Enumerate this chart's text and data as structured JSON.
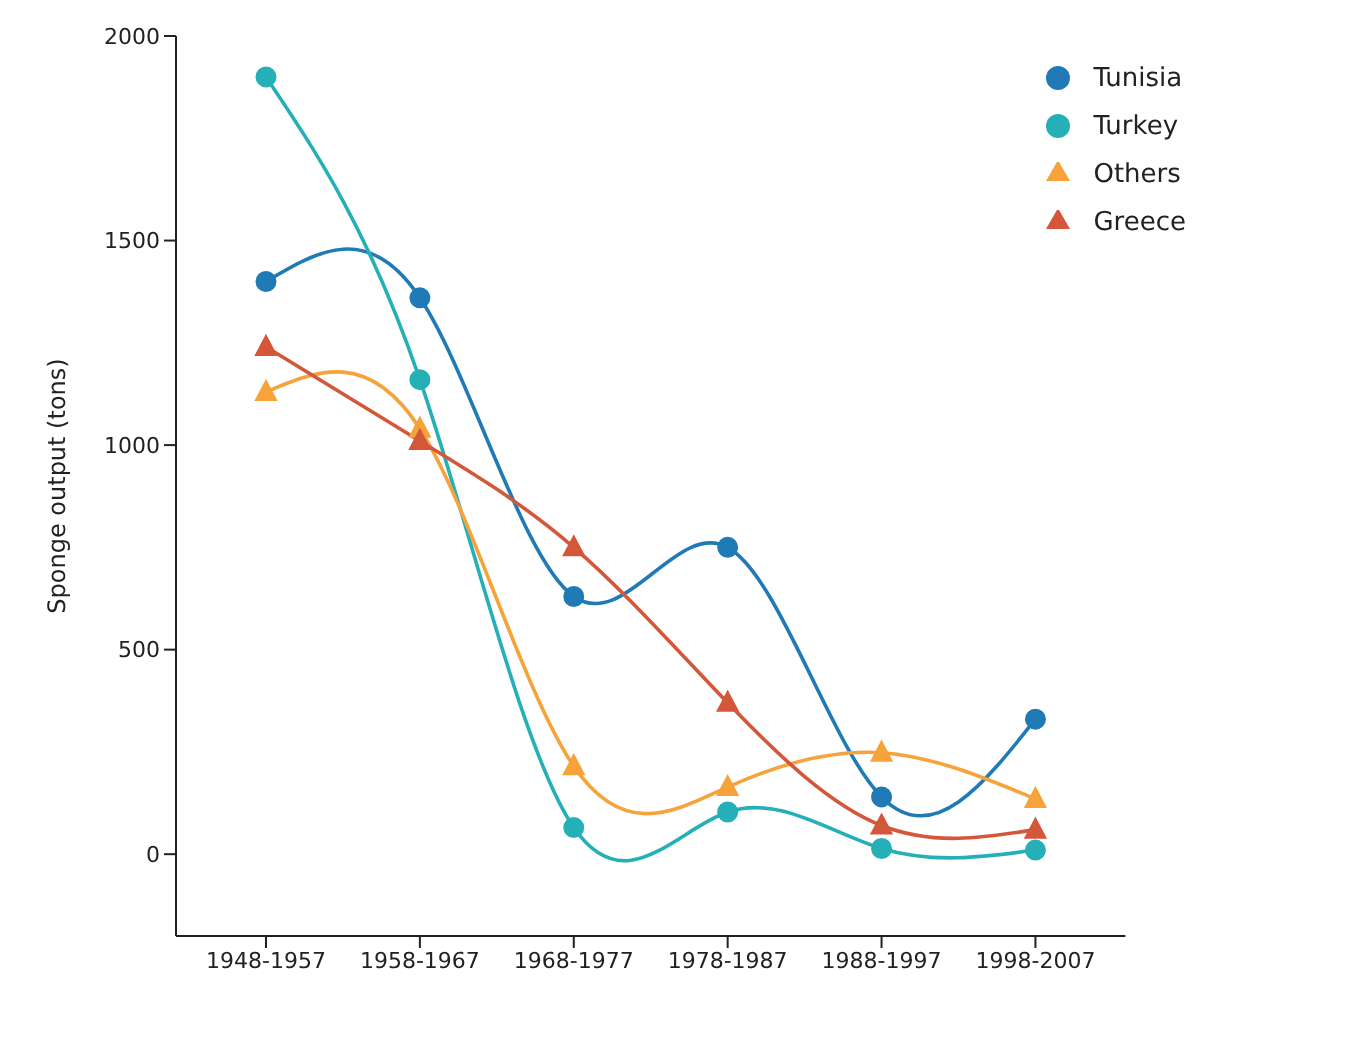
{
  "chart_data": {
    "type": "line",
    "ylabel": "Sponge output (tons)",
    "categories": [
      "1948-1957",
      "1958-1967",
      "1968-1977",
      "1978-1987",
      "1988-1997",
      "1998-2007"
    ],
    "series": [
      {
        "name": "Tunisia",
        "color": "#1f7ab5",
        "marker": "circle",
        "values": [
          1400,
          1360,
          630,
          750,
          140,
          330
        ]
      },
      {
        "name": "Turkey",
        "color": "#25b0b8",
        "marker": "circle",
        "values": [
          1900,
          1160,
          65,
          103,
          14,
          10
        ]
      },
      {
        "name": "Others",
        "color": "#f5a33a",
        "marker": "triangle",
        "values": [
          1130,
          1040,
          215,
          164,
          248,
          135
        ]
      },
      {
        "name": "Greece",
        "color": "#d4573a",
        "marker": "triangle",
        "values": [
          1240,
          1010,
          750,
          370,
          70,
          60
        ]
      }
    ],
    "ylim": [
      -200,
      2000
    ],
    "yticks": [
      0,
      500,
      1000,
      1500,
      2000
    ],
    "grid": false,
    "legend": "top right"
  }
}
